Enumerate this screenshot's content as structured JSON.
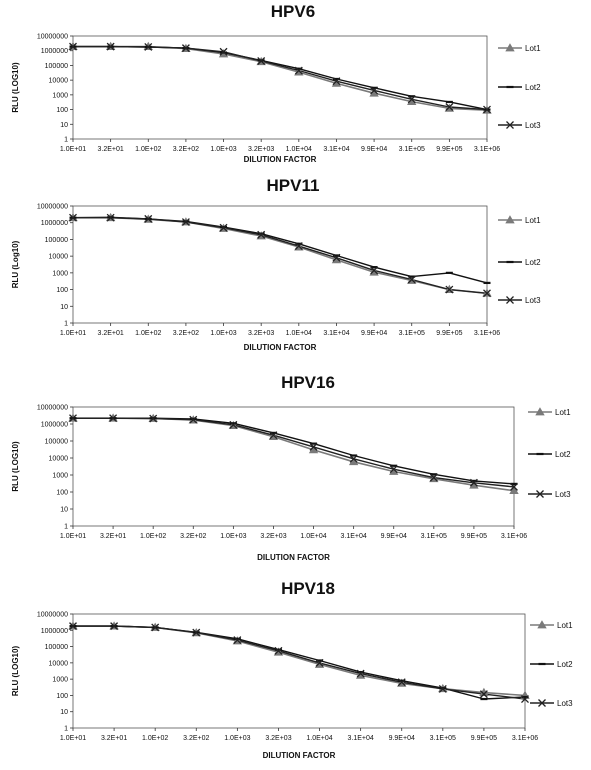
{
  "chart_data": [
    {
      "type": "line",
      "title": "HPV6",
      "xlabel": "DILUTION FACTOR",
      "ylabel": "RLU (LOG10)",
      "yscale": "log",
      "categories": [
        "1.0E+01",
        "3.2E+01",
        "1.0E+02",
        "3.2E+02",
        "1.0E+03",
        "3.2E+03",
        "1.0E+04",
        "3.1E+04",
        "9.9E+04",
        "3.1E+05",
        "9.9E+05",
        "3.1E+06"
      ],
      "yticks": [
        "1",
        "10",
        "100",
        "1000",
        "10000",
        "100000",
        "1000000",
        "10000000"
      ],
      "ylim": [
        1,
        10000000
      ],
      "series": [
        {
          "name": "Lot1",
          "marker": "triangle",
          "color": "#7a7a7a",
          "values": [
            1900000,
            1900000,
            1900000,
            1400000,
            600000,
            180000,
            35000,
            6000,
            1300,
            350,
            120,
            90
          ]
        },
        {
          "name": "Lot2",
          "marker": "dash",
          "color": "#111111",
          "values": [
            1900000,
            1900000,
            1800000,
            1500000,
            750000,
            220000,
            60000,
            12000,
            3000,
            800,
            330,
            100
          ]
        },
        {
          "name": "Lot3",
          "marker": "x",
          "color": "#222222",
          "values": [
            1900000,
            1900000,
            1800000,
            1500000,
            850000,
            200000,
            45000,
            8500,
            2000,
            500,
            150,
            100
          ]
        }
      ]
    },
    {
      "type": "line",
      "title": "HPV11",
      "xlabel": "DILUTION FACTOR",
      "ylabel": "RLU (Log10)",
      "yscale": "log",
      "categories": [
        "1.0E+01",
        "3.2E+01",
        "1.0E+02",
        "3.2E+02",
        "1.0E+03",
        "3.2E+03",
        "1.0E+04",
        "3.1E+04",
        "9.9E+04",
        "3.1E+05",
        "9.9E+05",
        "3.1E+06"
      ],
      "yticks": [
        "1",
        "10",
        "100",
        "1000",
        "10000",
        "100000",
        "1000000",
        "10000000"
      ],
      "ylim": [
        1,
        10000000
      ],
      "series": [
        {
          "name": "Lot1",
          "marker": "triangle",
          "color": "#7a7a7a",
          "values": [
            2000000,
            2000000,
            1600000,
            1100000,
            450000,
            160000,
            35000,
            6000,
            1100,
            350,
            100,
            60
          ]
        },
        {
          "name": "Lot2",
          "marker": "dash",
          "color": "#111111",
          "values": [
            2000000,
            2100000,
            1700000,
            1200000,
            550000,
            220000,
            55000,
            11000,
            2200,
            600,
            1000,
            250
          ]
        },
        {
          "name": "Lot3",
          "marker": "x",
          "color": "#222222",
          "values": [
            2000000,
            2000000,
            1700000,
            1100000,
            500000,
            190000,
            40000,
            8000,
            1400,
            400,
            100,
            60
          ]
        }
      ]
    },
    {
      "type": "line",
      "title": "HPV16",
      "xlabel": "DILUTION FACTOR",
      "ylabel": "RLU (LOG10)",
      "yscale": "log",
      "categories": [
        "1.0E+01",
        "3.2E+01",
        "1.0E+02",
        "3.2E+02",
        "1.0E+03",
        "3.2E+03",
        "1.0E+04",
        "3.1E+04",
        "9.9E+04",
        "3.1E+05",
        "9.9E+05",
        "3.1E+06"
      ],
      "yticks": [
        "1",
        "10",
        "100",
        "1000",
        "10000",
        "100000",
        "1000000",
        "10000000"
      ],
      "ylim": [
        1,
        10000000
      ],
      "series": [
        {
          "name": "Lot1",
          "marker": "triangle",
          "color": "#7a7a7a",
          "values": [
            2200000,
            2200000,
            2100000,
            1700000,
            800000,
            180000,
            30000,
            6000,
            1600,
            600,
            250,
            120
          ]
        },
        {
          "name": "Lot2",
          "marker": "dash",
          "color": "#111111",
          "values": [
            2200000,
            2200000,
            2200000,
            2000000,
            1100000,
            300000,
            70000,
            14000,
            3500,
            1100,
            450,
            300
          ]
        },
        {
          "name": "Lot3",
          "marker": "x",
          "color": "#222222",
          "values": [
            2200000,
            2200000,
            2100000,
            1800000,
            900000,
            220000,
            45000,
            9000,
            2200,
            700,
            350,
            200
          ]
        }
      ]
    },
    {
      "type": "line",
      "title": "HPV18",
      "xlabel": "DILUTION FACTOR",
      "ylabel": "RLU (LOG10)",
      "yscale": "log",
      "categories": [
        "1.0E+01",
        "3.2E+01",
        "1.0E+02",
        "3.2E+02",
        "1.0E+03",
        "3.2E+03",
        "1.0E+04",
        "3.1E+04",
        "9.9E+04",
        "3.1E+05",
        "9.9E+05",
        "3.1E+06"
      ],
      "yticks": [
        "1",
        "10",
        "100",
        "1000",
        "10000",
        "100000",
        "1000000",
        "10000000"
      ],
      "ylim": [
        1,
        10000000
      ],
      "series": [
        {
          "name": "Lot1",
          "marker": "triangle",
          "color": "#7a7a7a",
          "values": [
            1800000,
            1800000,
            1500000,
            700000,
            220000,
            45000,
            8000,
            1700,
            550,
            260,
            150,
            100
          ]
        },
        {
          "name": "Lot2",
          "marker": "dash",
          "color": "#111111",
          "values": [
            1800000,
            1800000,
            1500000,
            750000,
            300000,
            65000,
            14000,
            2700,
            800,
            280,
            60,
            80
          ]
        },
        {
          "name": "Lot3",
          "marker": "x",
          "color": "#222222",
          "values": [
            1800000,
            1800000,
            1500000,
            720000,
            250000,
            55000,
            10000,
            2200,
            650,
            250,
            120,
            60
          ]
        }
      ]
    }
  ]
}
